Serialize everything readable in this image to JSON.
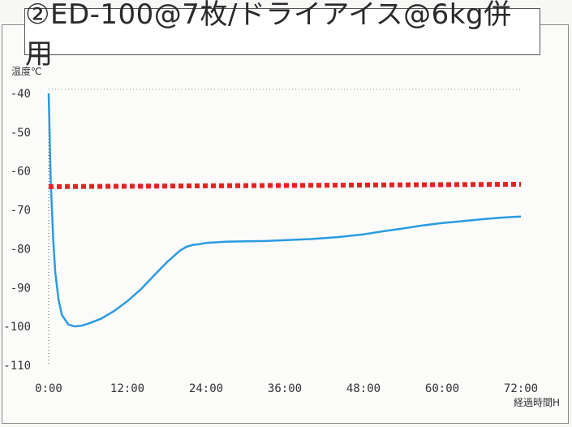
{
  "chart_data": {
    "type": "line",
    "title": "②ED-100@7枚/ドライアイス@6kg併用",
    "ylabel": "温度℃",
    "xlabel": "経過時間H",
    "ylim": [
      -110,
      -40
    ],
    "yticks": [
      -40,
      -50,
      -60,
      -70,
      -80,
      -90,
      -100,
      -110
    ],
    "xlim": [
      0,
      72
    ],
    "xticks": [
      "0:00",
      "12:00",
      "24:00",
      "36:00",
      "48:00",
      "60:00",
      "72:00"
    ],
    "xtick_values": [
      0,
      12,
      24,
      36,
      48,
      60,
      72
    ],
    "grid": false,
    "series": [
      {
        "color": "#2b9be0",
        "style": "solid",
        "x": [
          0,
          0.3,
          0.7,
          1,
          1.5,
          2,
          3,
          4,
          5,
          6,
          8,
          10,
          12,
          14,
          16,
          18,
          20,
          21,
          22,
          23,
          24,
          27,
          30,
          33,
          36,
          40,
          44,
          48,
          51,
          54,
          57,
          60,
          63,
          66,
          69,
          72
        ],
        "y": [
          -40,
          -62,
          -78,
          -86,
          -93,
          -97,
          -99.5,
          -100,
          -99.8,
          -99.3,
          -98,
          -96,
          -93.5,
          -90.5,
          -87,
          -83.5,
          -80.5,
          -79.5,
          -79,
          -78.8,
          -78.5,
          -78.2,
          -78.1,
          -78,
          -77.8,
          -77.5,
          -77,
          -76.3,
          -75.5,
          -74.8,
          -74,
          -73.4,
          -72.9,
          -72.4,
          -72,
          -71.7
        ]
      },
      {
        "color": "#e52222",
        "style": "dotted",
        "x": [
          0,
          72
        ],
        "y": [
          -64,
          -63.4
        ]
      }
    ]
  }
}
